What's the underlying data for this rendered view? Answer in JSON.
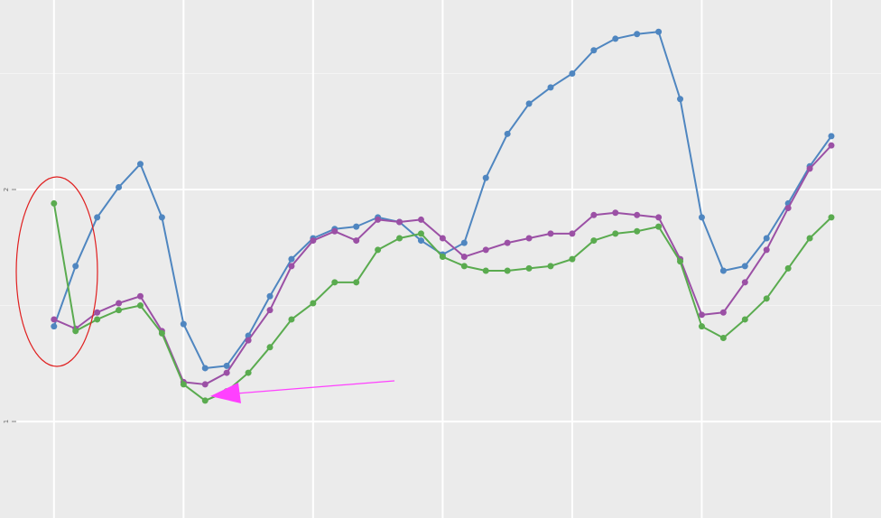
{
  "chart_data": {
    "type": "line",
    "x": [
      0,
      1,
      2,
      3,
      4,
      5,
      6,
      7,
      8,
      9,
      10,
      11,
      12,
      13,
      14,
      15,
      16,
      17,
      18,
      19,
      20,
      21,
      22,
      23,
      24,
      25,
      26,
      27,
      28,
      29,
      30,
      31,
      32,
      33,
      34,
      35,
      36
    ],
    "xlim": [
      -2.5,
      38.3
    ],
    "xgrid": [
      0,
      6,
      12,
      18,
      24,
      30,
      36
    ],
    "ylim": [
      0.584,
      2.817
    ],
    "yticks": [
      1,
      2
    ],
    "minor_yticks": [
      1.5,
      2.5
    ],
    "grid": true,
    "series": [
      {
        "color": "#4f86c0",
        "values": [
          1.41,
          1.67,
          1.88,
          2.01,
          2.11,
          1.88,
          1.42,
          1.23,
          1.24,
          1.37,
          1.54,
          1.7,
          1.79,
          1.83,
          1.84,
          1.88,
          1.86,
          1.78,
          1.72,
          1.77,
          2.05,
          2.24,
          2.37,
          2.44,
          2.5,
          2.6,
          2.65,
          2.67,
          2.68,
          2.39,
          1.88,
          1.65,
          1.67,
          1.79,
          1.94,
          2.1,
          2.23
        ]
      },
      {
        "color": "#9b50a5",
        "values": [
          1.44,
          1.4,
          1.47,
          1.51,
          1.54,
          1.39,
          1.17,
          1.16,
          1.21,
          1.35,
          1.48,
          1.67,
          1.78,
          1.82,
          1.78,
          1.87,
          1.86,
          1.87,
          1.79,
          1.71,
          1.74,
          1.77,
          1.79,
          1.81,
          1.81,
          1.89,
          1.9,
          1.89,
          1.88,
          1.7,
          1.46,
          1.47,
          1.6,
          1.74,
          1.92,
          2.09,
          2.19
        ]
      },
      {
        "color": "#5aab4f",
        "values": [
          1.94,
          1.39,
          1.44,
          1.48,
          1.5,
          1.38,
          1.16,
          1.09,
          1.13,
          1.21,
          1.32,
          1.44,
          1.51,
          1.6,
          1.6,
          1.74,
          1.79,
          1.81,
          1.71,
          1.67,
          1.65,
          1.65,
          1.66,
          1.67,
          1.7,
          1.78,
          1.81,
          1.82,
          1.84,
          1.69,
          1.41,
          1.36,
          1.44,
          1.53,
          1.66,
          1.79,
          1.88
        ]
      }
    ]
  }
}
